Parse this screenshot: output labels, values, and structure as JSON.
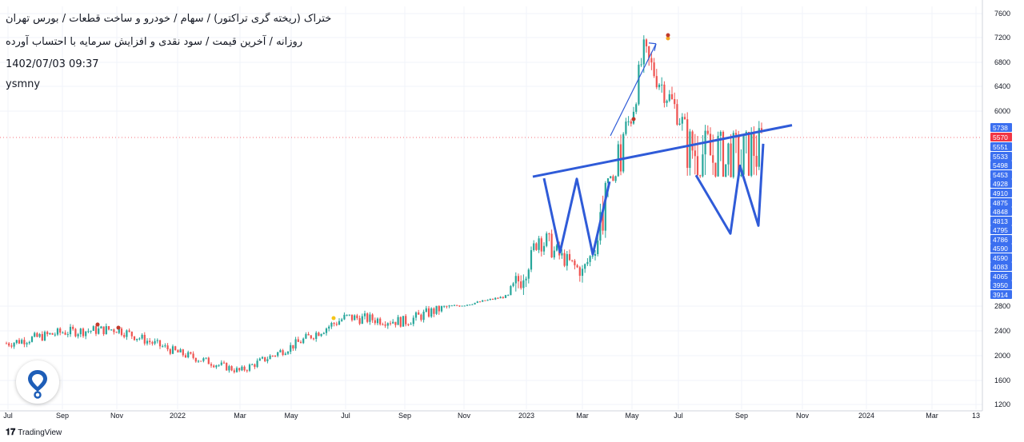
{
  "header": {
    "symbol_line": "ختراک (ریخته گری تراکتور) / سهام / خودرو و ساخت قطعات / بورس تهران",
    "series_line": "روزانه / آخرین قیمت / سود نقدی و افزایش سرمایه با احتساب آورده",
    "timestamp": "1402/07/03 09:37",
    "author": "ysmny"
  },
  "footer": {
    "brand": "TradingView",
    "brand_icon": "tradingview-logo-icon"
  },
  "logo": {
    "icon": "location-pin-icon",
    "color": "#1e5eb8"
  },
  "colors": {
    "up": "#26a69a",
    "down": "#ef5350",
    "annotation": "#2f5bd8",
    "label_bg": "#3b6ff0",
    "last_price_bg": "#f23645"
  },
  "chart_data": {
    "type": "candlestick",
    "x_axis": {
      "ticks": [
        "Jul",
        "Sep",
        "Nov",
        "2022",
        "Mar",
        "May",
        "Jul",
        "Sep",
        "Nov",
        "2023",
        "Mar",
        "May",
        "Jul",
        "Sep",
        "Nov",
        "2024",
        "Mar",
        "13"
      ]
    },
    "y_axis": {
      "ticks": [
        1200,
        1600,
        2000,
        2400,
        2800,
        6000,
        6400,
        6800,
        7200,
        7600
      ],
      "label_values": [
        5738,
        5570,
        5551,
        5533,
        5498,
        5453,
        4928,
        4910,
        4875,
        4848,
        4813,
        4795,
        4786,
        4590,
        4590,
        4083,
        4065,
        3950,
        3914
      ],
      "last_price": 5570,
      "grid": true
    },
    "price_path": [
      [
        "Jul",
        2200
      ],
      [
        "Sep",
        2380
      ],
      [
        "Nov",
        2430
      ],
      [
        "2022",
        2050
      ],
      [
        "Mar",
        1750
      ],
      [
        "May",
        2150
      ],
      [
        "Jul",
        2620
      ],
      [
        "Sep",
        2550
      ],
      [
        "Nov",
        2900
      ],
      [
        "2023",
        4200
      ],
      [
        "2023",
        4750
      ],
      [
        "Mar",
        4150
      ],
      [
        "May",
        5950
      ],
      [
        "May",
        6950
      ],
      [
        "Jul",
        5950
      ],
      [
        "Jul",
        5550
      ],
      [
        "Sep",
        5450
      ],
      [
        "Sep",
        5570
      ]
    ],
    "annotations": {
      "trendline": {
        "from": [
          "2023",
          5320
        ],
        "to": [
          "Nov",
          5780
        ]
      },
      "pattern_1": [
        [
          "2023",
          5230
        ],
        [
          "2023",
          4520
        ],
        [
          "Mar",
          5200
        ],
        [
          "Mar",
          4480
        ],
        [
          "Mar",
          5050
        ]
      ],
      "pattern_2": [
        [
          "Jul",
          5400
        ],
        [
          "Sep",
          4750
        ],
        [
          "Sep",
          5480
        ],
        [
          "Sep",
          4800
        ],
        [
          "Sep",
          5550
        ]
      ],
      "arrow": {
        "from": [
          "May",
          5600
        ],
        "to": [
          "Jul",
          7100
        ]
      }
    }
  }
}
